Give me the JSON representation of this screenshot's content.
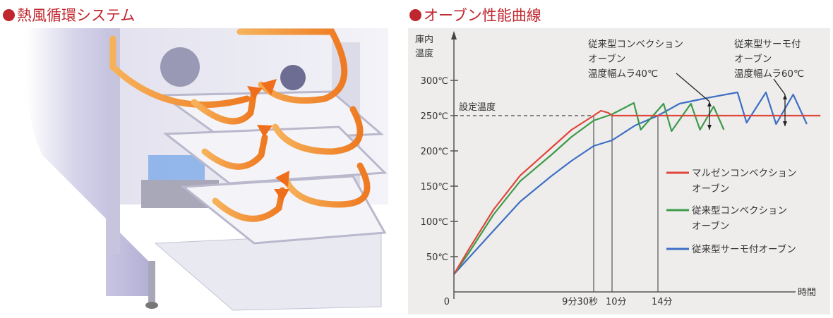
{
  "left_panel": {
    "title": "熱風循環システム",
    "bullet_color": "#c0262e",
    "illustration": "oven-hot-air-circulation-illustration",
    "arrow_color": "#f08a2a"
  },
  "right_panel": {
    "title": "オーブン性能曲線"
  },
  "chart_data": {
    "type": "line",
    "title": "オーブン性能曲線",
    "xlabel": "時間",
    "ylabel": "庫内温度",
    "ylabel_lines": [
      "庫内",
      "温度"
    ],
    "ylim": [
      0,
      320
    ],
    "xlim": [
      0,
      28.5
    ],
    "y_ticks": [
      {
        "value": 50,
        "label": "50℃"
      },
      {
        "value": 100,
        "label": "100℃"
      },
      {
        "value": 150,
        "label": "150℃"
      },
      {
        "value": 200,
        "label": "200℃"
      },
      {
        "value": 250,
        "label": "250℃"
      },
      {
        "value": 300,
        "label": "300℃"
      }
    ],
    "x_ticks": [
      {
        "value": 0,
        "label": "0"
      },
      {
        "value": 9.5,
        "label": "9分30秒"
      },
      {
        "value": 10,
        "label": "10分"
      },
      {
        "value": 14,
        "label": "14分"
      }
    ],
    "x_unit": "minutes",
    "grid": false,
    "reference_line": {
      "value": 250,
      "label": "設定温度",
      "style": "dashed"
    },
    "legend_position": "right-middle",
    "series": [
      {
        "name": "マルゼンコンベクションオーブン",
        "name_lines": [
          "マルゼンコンベクション",
          "オーブン"
        ],
        "color": "#e0463a",
        "points": [
          [
            0,
            25
          ],
          [
            1,
            60
          ],
          [
            2.7,
            117
          ],
          [
            4.5,
            165
          ],
          [
            6.6,
            204
          ],
          [
            8,
            230
          ],
          [
            9.5,
            250
          ],
          [
            9.7,
            257
          ],
          [
            9.9,
            254
          ],
          [
            10,
            250
          ],
          [
            28.3,
            250
          ]
        ]
      },
      {
        "name": "従来型コンベクションオーブン",
        "name_lines": [
          "従来型コンベクション",
          "オーブン"
        ],
        "color": "#3d9a4a",
        "points": [
          [
            0,
            25
          ],
          [
            1,
            55
          ],
          [
            2.7,
            110
          ],
          [
            4.5,
            157
          ],
          [
            6.6,
            194
          ],
          [
            8,
            220
          ],
          [
            9.5,
            243
          ],
          [
            10,
            252
          ],
          [
            11.9,
            268
          ],
          [
            12.5,
            230
          ],
          [
            14.5,
            267
          ],
          [
            15.2,
            228
          ],
          [
            16.9,
            267
          ],
          [
            17.7,
            230
          ],
          [
            18.9,
            263
          ],
          [
            19.8,
            230
          ]
        ]
      },
      {
        "name": "従来型サーモ付オーブン",
        "name_lines": [
          "従来型サーモ付オーブン"
        ],
        "color": "#3f6fc4",
        "points": [
          [
            0,
            25
          ],
          [
            1,
            48
          ],
          [
            2.7,
            87
          ],
          [
            4.5,
            128
          ],
          [
            6.6,
            164
          ],
          [
            8,
            186
          ],
          [
            9.5,
            207
          ],
          [
            10,
            215
          ],
          [
            12,
            236
          ],
          [
            14,
            250
          ],
          [
            15.9,
            267
          ],
          [
            18.3,
            275
          ],
          [
            21,
            283
          ],
          [
            21.8,
            240
          ],
          [
            23.5,
            283
          ],
          [
            24.4,
            238
          ],
          [
            25.9,
            280
          ],
          [
            27.1,
            238
          ]
        ]
      }
    ],
    "annotations": [
      {
        "lines": [
          "従来型コンベクション",
          "オーブン",
          "温度幅ムラ40℃"
        ],
        "target_series": "従来型コンベクションオーブン",
        "range": [
          230,
          270
        ]
      },
      {
        "lines": [
          "従来型サーモ付",
          "オーブン",
          "温度幅ムラ60℃"
        ],
        "target_series": "従来型サーモ付オーブン",
        "range": [
          220,
          280
        ]
      }
    ]
  }
}
